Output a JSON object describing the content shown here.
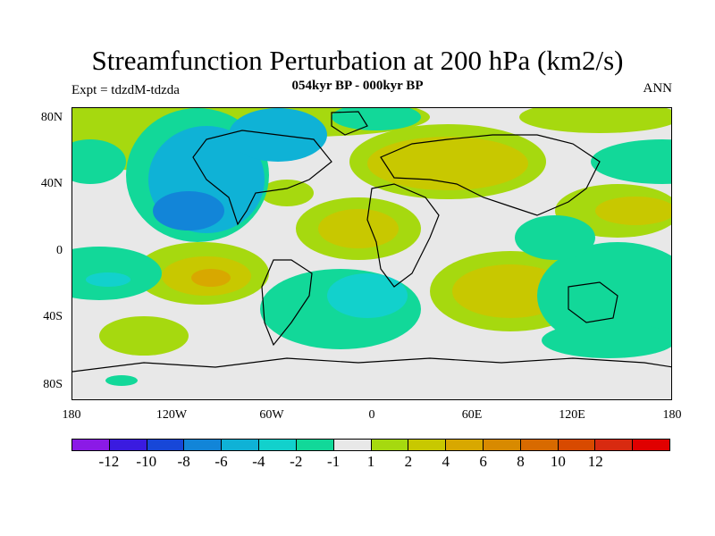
{
  "title": "Streamfunction Perturbation at 200 hPa (km2/s)",
  "subtitle": "054kyr BP - 000kyr BP",
  "left_label": "Expt = tdzdM-tdzda",
  "right_label": "ANN",
  "lat_labels": [
    "80N",
    "40N",
    "0",
    "40S",
    "80S"
  ],
  "lon_labels": [
    "180",
    "120W",
    "60W",
    "0",
    "60E",
    "120E",
    "180"
  ],
  "colorbar": {
    "colors": [
      "#8b1ae6",
      "#3a1be0",
      "#1747d8",
      "#1285d8",
      "#0fb2d6",
      "#12d1cc",
      "#12d899",
      "#e8e8e8",
      "#a6d90f",
      "#c8c800",
      "#d8a800",
      "#d88a00",
      "#d86a00",
      "#d84a00",
      "#d82a10",
      "#e00000"
    ],
    "labels": [
      "-12",
      "-10",
      "-8",
      "-6",
      "-4",
      "-2",
      "-1",
      "1",
      "2",
      "4",
      "6",
      "8",
      "10",
      "12"
    ]
  }
}
